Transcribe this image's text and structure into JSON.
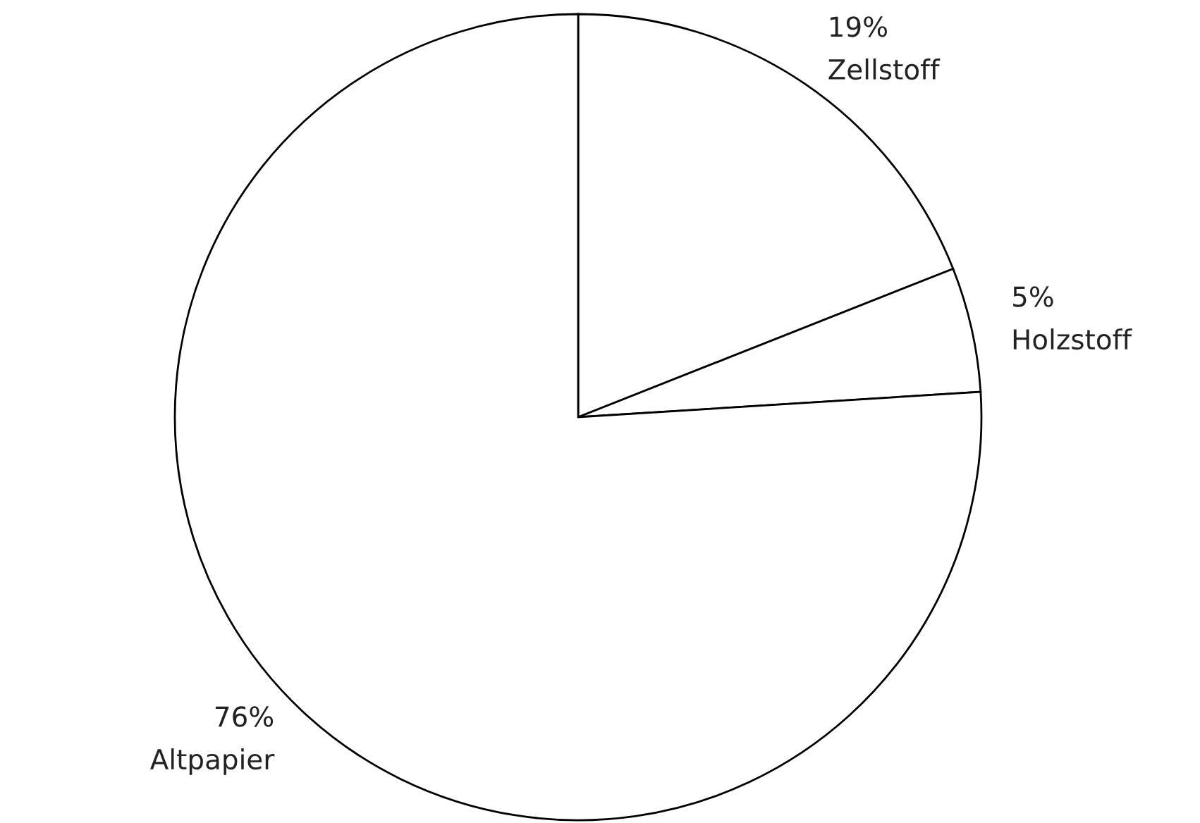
{
  "chart_data": {
    "type": "pie",
    "categories": [
      "Zellstoff",
      "Holzstoff",
      "Altpapier"
    ],
    "values": [
      19,
      5,
      76
    ],
    "value_labels": [
      "19%",
      "5%",
      "76%"
    ],
    "colors": [
      "#ffffff",
      "#ffffff",
      "#ffffff"
    ]
  }
}
